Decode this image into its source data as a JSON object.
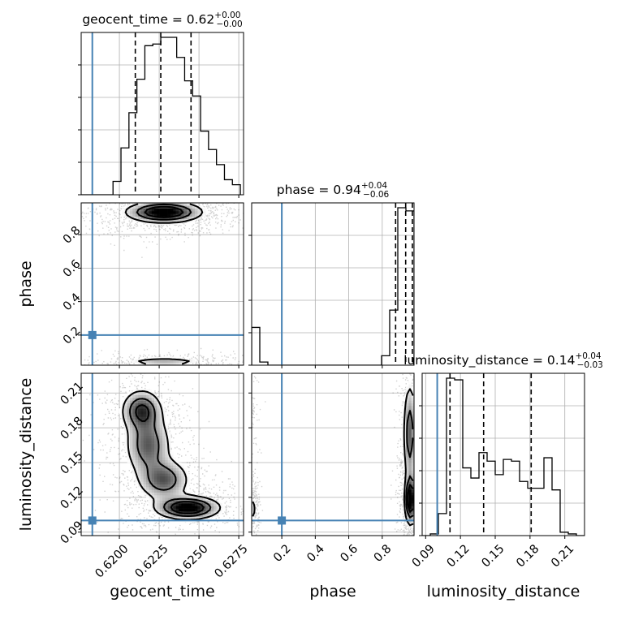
{
  "colors": {
    "truth": "#4682b4",
    "hist": "#000000",
    "grid": "#b0b0b0",
    "scatter": "#000000"
  },
  "chart_data": {
    "type": "corner",
    "parameters": [
      "geocent_time",
      "phase",
      "luminosity_distance"
    ],
    "truths": {
      "geocent_time": 0.6183,
      "phase": 0.2,
      "luminosity_distance": 0.1
    },
    "panel_titles": {
      "geocent_time": {
        "text": "geocent_time = 0.62",
        "sup": "+0.00",
        "sub": "−0.00"
      },
      "phase": {
        "text": "phase = 0.94",
        "sup": "+0.04",
        "sub": "−0.06"
      },
      "luminosity_distance": {
        "text": "luminosity_distance = 0.14",
        "sup": "+0.04",
        "sub": "−0.03"
      }
    },
    "axes": {
      "geocent_time": {
        "range": [
          0.6176,
          0.6278
        ],
        "ticks": [
          0.62,
          0.6225,
          0.625,
          0.6275
        ],
        "tick_labels": [
          "0.6200",
          "0.6225",
          "0.6250",
          "0.6275"
        ]
      },
      "phase": {
        "range": [
          0.02,
          0.99
        ],
        "ticks": [
          0.2,
          0.4,
          0.6,
          0.8
        ],
        "tick_labels": [
          "0.2",
          "0.4",
          "0.6",
          "0.8"
        ]
      },
      "luminosity_distance": {
        "range": [
          0.087,
          0.227
        ],
        "ticks": [
          0.09,
          0.12,
          0.15,
          0.18,
          0.21
        ],
        "tick_labels": [
          "0.09",
          "0.12",
          "0.15",
          "0.18",
          "0.21"
        ]
      }
    },
    "histograms": {
      "geocent_time": {
        "bins": [
          0.6176,
          0.6181,
          0.6186,
          0.6191,
          0.6196,
          0.6201,
          0.6206,
          0.6211,
          0.6216,
          0.6221,
          0.6226,
          0.6231,
          0.6236,
          0.6241,
          0.6246,
          0.6251,
          0.6256,
          0.6261,
          0.6266,
          0.6271,
          0.6276
        ],
        "counts": [
          0,
          0,
          0,
          0,
          0.08,
          0.28,
          0.49,
          0.69,
          0.89,
          0.9,
          0.94,
          0.94,
          0.82,
          0.68,
          0.59,
          0.38,
          0.27,
          0.18,
          0.09,
          0.06
        ],
        "quantiles": [
          0.621,
          0.6226,
          0.6245
        ]
      },
      "phase": {
        "bins": [
          0.02,
          0.0685,
          0.117,
          0.1655,
          0.214,
          0.2625,
          0.311,
          0.3595,
          0.408,
          0.4565,
          0.505,
          0.5535,
          0.602,
          0.6505,
          0.699,
          0.7475,
          0.796,
          0.8445,
          0.893,
          0.9415,
          0.99
        ],
        "counts": [
          0.24,
          0.02,
          0,
          0,
          0,
          0,
          0,
          0,
          0,
          0,
          0,
          0,
          0,
          0,
          0,
          0,
          0.06,
          0.35,
          1.0,
          0.98
        ],
        "quantiles": [
          0.88,
          0.94,
          0.98
        ]
      },
      "luminosity_distance": {
        "bins": [
          0.087,
          0.094,
          0.101,
          0.108,
          0.115,
          0.122,
          0.129,
          0.136,
          0.143,
          0.15,
          0.157,
          0.164,
          0.171,
          0.178,
          0.185,
          0.192,
          0.199,
          0.206,
          0.213,
          0.22,
          0.227
        ],
        "counts": [
          0,
          0.01,
          0.13,
          0.93,
          0.92,
          0.4,
          0.34,
          0.49,
          0.44,
          0.36,
          0.45,
          0.44,
          0.32,
          0.28,
          0.28,
          0.46,
          0.27,
          0.02,
          0.01,
          0
        ],
        "quantiles": [
          0.111,
          0.14,
          0.181
        ]
      }
    },
    "density_2d": [
      {
        "x": "geocent_time",
        "y": "phase",
        "blobs": [
          {
            "mx": 0.6228,
            "my": 0.935,
            "sx": 0.0013,
            "sy": 0.035,
            "w": 1
          },
          {
            "mx": 0.6228,
            "my": 0.04,
            "sx": 0.0014,
            "sy": 0.015,
            "w": 0.35
          }
        ]
      },
      {
        "x": "geocent_time",
        "y": "luminosity_distance",
        "blobs": [
          {
            "mx": 0.6214,
            "my": 0.195,
            "sx": 0.0007,
            "sy": 0.01,
            "w": 0.7
          },
          {
            "mx": 0.6218,
            "my": 0.165,
            "sx": 0.0008,
            "sy": 0.015,
            "w": 0.6
          },
          {
            "mx": 0.6228,
            "my": 0.135,
            "sx": 0.0009,
            "sy": 0.01,
            "w": 0.6
          },
          {
            "mx": 0.6243,
            "my": 0.111,
            "sx": 0.0011,
            "sy": 0.0055,
            "w": 1
          }
        ]
      },
      {
        "x": "phase",
        "y": "luminosity_distance",
        "blobs": [
          {
            "mx": 0.965,
            "my": 0.175,
            "sx": 0.022,
            "sy": 0.025,
            "w": 0.6
          },
          {
            "mx": 0.97,
            "my": 0.118,
            "sx": 0.02,
            "sy": 0.012,
            "w": 1
          },
          {
            "mx": 0.03,
            "my": 0.11,
            "sx": 0.01,
            "sy": 0.006,
            "w": 0.3
          },
          {
            "mx": 0.03,
            "my": 0.19,
            "sx": 0.01,
            "sy": 0.02,
            "w": 0.12
          }
        ]
      }
    ],
    "contour_levels": [
      0.18,
      0.43,
      0.66
    ],
    "grid": true
  }
}
